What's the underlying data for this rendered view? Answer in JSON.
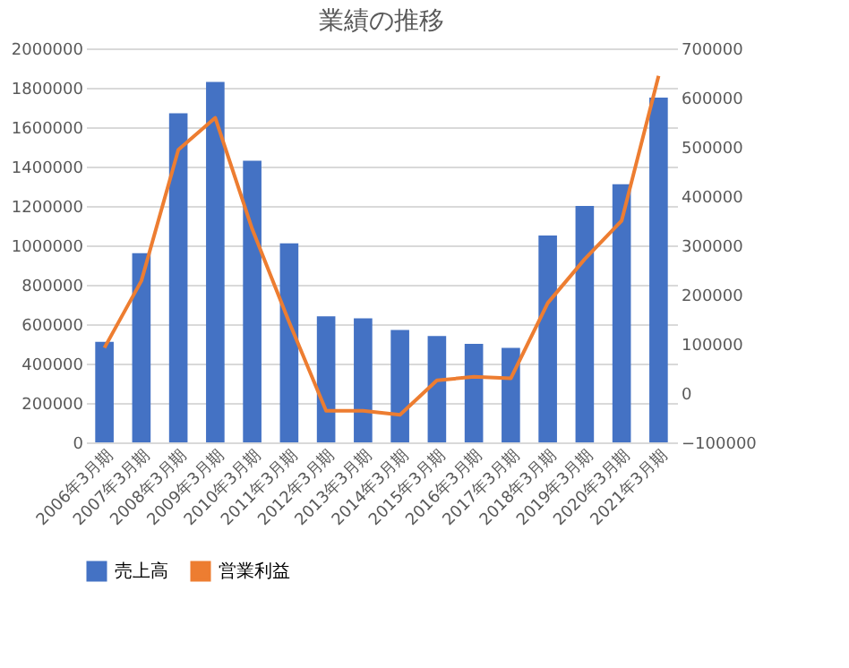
{
  "chart_data": {
    "type": "bar",
    "title": "業績の推移",
    "categories": [
      "2006年3月期",
      "2007年3月期",
      "2008年3月期",
      "2009年3月期",
      "2010年3月期",
      "2011年3月期",
      "2012年3月期",
      "2013年3月期",
      "2014年3月期",
      "2015年3月期",
      "2016年3月期",
      "2017年3月期",
      "2018年3月期",
      "2019年3月期",
      "2020年3月期",
      "2021年3月期"
    ],
    "series": [
      {
        "name": "売上高",
        "color": "#4472c4",
        "values": [
          510000,
          960000,
          1670000,
          1830000,
          1430000,
          1010000,
          640000,
          630000,
          570000,
          540000,
          500000,
          480000,
          1050000,
          1200000,
          1310000,
          1750000
        ]
      },
      {
        "name": "営業利益",
        "type": "line",
        "axis": "y2",
        "color": "#ed7d31",
        "values": [
          92000,
          228000,
          494000,
          559000,
          333000,
          144000,
          -36000,
          -36000,
          -44000,
          26000,
          33000,
          30000,
          183000,
          272000,
          350000,
          644000
        ]
      }
    ],
    "ylim": [
      0,
      2000000
    ],
    "yticks": [
      0,
      200000,
      400000,
      600000,
      800000,
      1000000,
      1200000,
      1400000,
      1600000,
      1800000,
      2000000
    ],
    "y2lim": [
      -100000,
      700000
    ],
    "y2ticks": [
      -100000,
      0,
      100000,
      200000,
      300000,
      400000,
      500000,
      600000,
      700000
    ],
    "grid": "y",
    "legend": "bottom"
  }
}
